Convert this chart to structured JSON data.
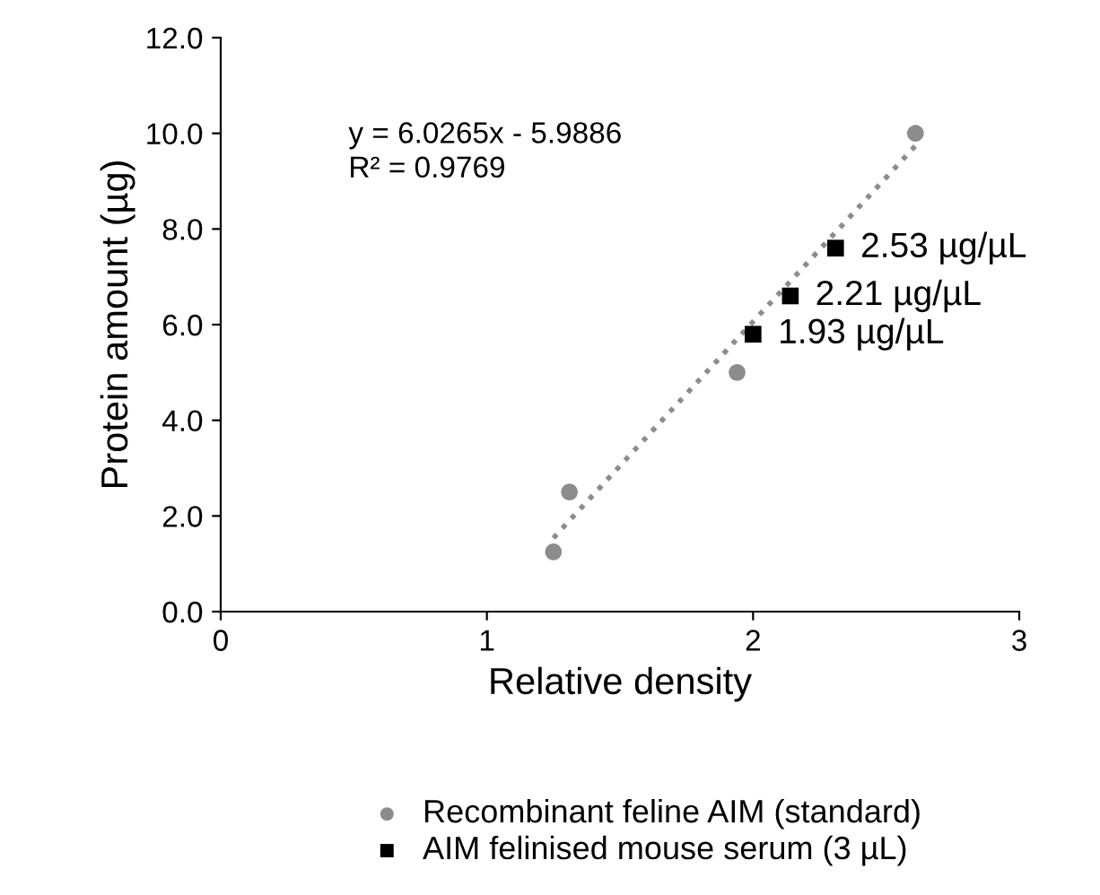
{
  "chart_data": {
    "type": "scatter",
    "xlabel": "Relative density",
    "ylabel": "Protein amount (µg)",
    "series": [
      {
        "name": "Recombinant feline AIM (standard)",
        "marker": "circle",
        "color": "#8c8c8c",
        "x": [
          1.25,
          1.31,
          1.94,
          2.61
        ],
        "values": [
          1.25,
          2.5,
          5.0,
          10.0
        ]
      },
      {
        "name": "AIM felinised mouse serum (3 µL)",
        "marker": "square",
        "color": "#000000",
        "x": [
          2.0,
          2.14,
          2.31
        ],
        "values": [
          5.8,
          6.6,
          7.6
        ]
      },
      {
        "type": "line",
        "line_style": "dotted",
        "color": "#8c8c8c",
        "x": [
          1.25,
          2.61
        ],
        "values": [
          1.54,
          9.74
        ]
      }
    ],
    "annotations": [
      "y = 6.0265x - 5.9886\nR² = 0.9769",
      {
        "text": "1.93 µg/µL",
        "x": 2.0,
        "y": 5.8
      },
      {
        "text": "2.21 µg/µL",
        "x": 2.14,
        "y": 6.6
      },
      {
        "text": "2.53 µg/µL",
        "x": 2.31,
        "y": 7.6
      }
    ],
    "xlim": [
      0,
      3
    ],
    "xticks": [
      0,
      1,
      2,
      3
    ],
    "ylim": [
      0,
      12
    ],
    "yticks": [
      {
        "value": 0,
        "label": "0.0"
      },
      {
        "value": 2,
        "label": "2.0"
      },
      {
        "value": 4,
        "label": "4.0"
      },
      {
        "value": 6,
        "label": "6.0"
      },
      {
        "value": 8,
        "label": "8.0"
      },
      {
        "value": 10,
        "label": "10.0"
      },
      {
        "value": 12,
        "label": "12.0"
      }
    ],
    "grid": false,
    "legend": "bottom"
  }
}
